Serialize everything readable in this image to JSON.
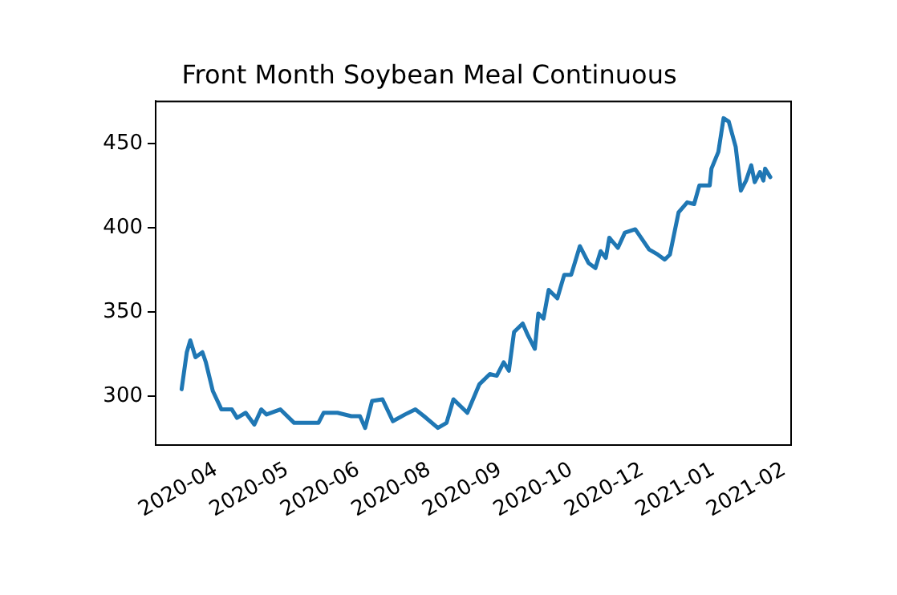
{
  "chart_data": {
    "type": "line",
    "title": "Front Month Soybean Meal Continuous",
    "x": [
      "2020-03-12",
      "2020-03-15",
      "2020-03-17",
      "2020-03-20",
      "2020-03-24",
      "2020-03-26",
      "2020-03-30",
      "2020-04-04",
      "2020-04-10",
      "2020-04-13",
      "2020-04-18",
      "2020-04-23",
      "2020-04-27",
      "2020-04-30",
      "2020-05-08",
      "2020-05-16",
      "2020-05-22",
      "2020-05-30",
      "2020-06-02",
      "2020-06-10",
      "2020-06-18",
      "2020-06-23",
      "2020-06-26",
      "2020-06-30",
      "2020-07-06",
      "2020-07-12",
      "2020-07-19",
      "2020-07-25",
      "2020-07-30",
      "2020-08-07",
      "2020-08-12",
      "2020-08-16",
      "2020-08-24",
      "2020-08-31",
      "2020-09-06",
      "2020-09-10",
      "2020-09-14",
      "2020-09-17",
      "2020-09-20",
      "2020-09-25",
      "2020-09-28",
      "2020-10-02",
      "2020-10-04",
      "2020-10-07",
      "2020-10-10",
      "2020-10-15",
      "2020-10-19",
      "2020-10-23",
      "2020-10-28",
      "2020-11-02",
      "2020-11-06",
      "2020-11-09",
      "2020-11-12",
      "2020-11-14",
      "2020-11-19",
      "2020-11-23",
      "2020-11-29",
      "2020-12-07",
      "2020-12-12",
      "2020-12-16",
      "2020-12-19",
      "2020-12-24",
      "2020-12-29",
      "2021-01-02",
      "2021-01-05",
      "2021-01-11",
      "2021-01-12",
      "2021-01-16",
      "2021-01-19",
      "2021-01-22",
      "2021-01-26",
      "2021-01-29",
      "2021-02-01",
      "2021-02-04",
      "2021-02-06",
      "2021-02-09",
      "2021-02-11",
      "2021-02-12",
      "2021-02-15"
    ],
    "series": [
      {
        "color": "#1f77b4",
        "values": [
          304,
          326,
          333,
          323,
          326,
          320,
          303,
          292,
          292,
          287,
          290,
          283,
          292,
          289,
          292,
          284,
          284,
          284,
          290,
          290,
          288,
          288,
          281,
          297,
          298,
          285,
          289,
          292,
          288,
          281,
          284,
          298,
          290,
          307,
          313,
          312,
          320,
          315,
          338,
          343,
          336,
          328,
          349,
          346,
          363,
          358,
          372,
          372,
          389,
          379,
          376,
          386,
          382,
          394,
          388,
          397,
          399,
          387,
          384,
          381,
          384,
          409,
          415,
          414,
          425,
          425,
          435,
          445,
          465,
          463,
          448,
          422,
          428,
          437,
          427,
          433,
          428,
          435,
          430
        ]
      }
    ],
    "xlim": [
      "2020-02-26",
      "2021-02-27"
    ],
    "xticks": [
      {
        "value": "2020-04-01",
        "label": "2020-04"
      },
      {
        "value": "2020-05-12",
        "label": "2020-05"
      },
      {
        "value": "2020-06-22",
        "label": "2020-06"
      },
      {
        "value": "2020-08-02",
        "label": "2020-08"
      },
      {
        "value": "2020-09-12",
        "label": "2020-09"
      },
      {
        "value": "2020-10-23",
        "label": "2020-10"
      },
      {
        "value": "2020-12-03",
        "label": "2020-12"
      },
      {
        "value": "2021-01-13",
        "label": "2021-01"
      },
      {
        "value": "2021-02-23",
        "label": "2021-02"
      }
    ],
    "ylim": [
      271,
      475
    ],
    "yticks": [
      300,
      350,
      400,
      450
    ],
    "grid": false,
    "legend": false,
    "marker": "none",
    "line_style": "solid"
  }
}
